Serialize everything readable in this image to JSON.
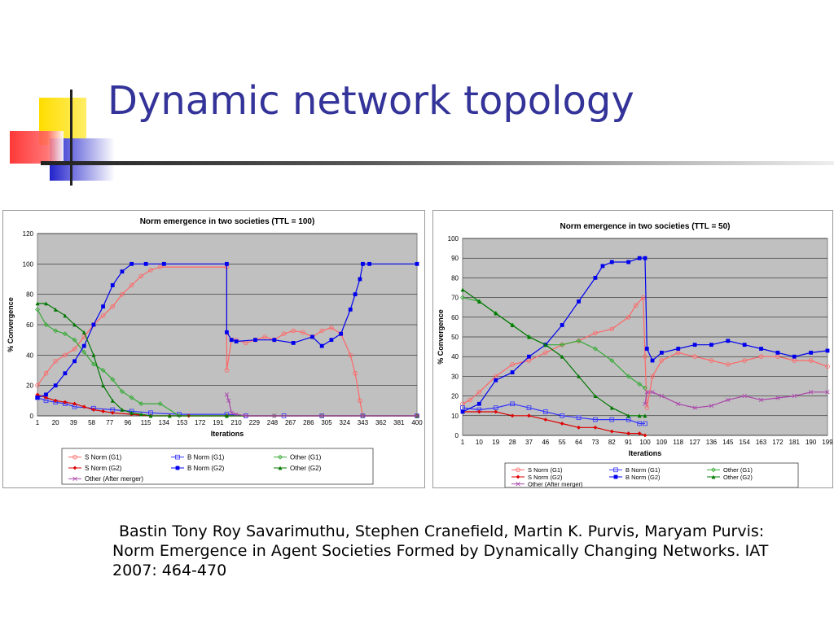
{
  "slide": {
    "title": "Dynamic network topology",
    "citation": {
      "line1": "Bastin Tony Roy Savarimuthu, Stephen Cranefield, Martin K. Purvis, Maryam Purvis:",
      "line2": "Norm Emergence in Agent Societies Formed by Dynamically Changing Networks. IAT",
      "line3": "2007: 464-470"
    },
    "colors": {
      "title": "#333399",
      "deco_yellow": "#ffcc00",
      "deco_blue": "#3333cc",
      "deco_red": "#ff3333"
    }
  },
  "chart_data": [
    {
      "type": "line",
      "title": "Norm emergence in two societies (TTL = 100)",
      "xlabel": "Iterations",
      "ylabel": "% Convergence",
      "xlim": [
        1,
        400
      ],
      "ylim": [
        0,
        120
      ],
      "yticks": [
        0,
        20,
        40,
        60,
        80,
        100,
        120
      ],
      "xticks": [
        1,
        20,
        39,
        58,
        77,
        96,
        115,
        134,
        153,
        172,
        191,
        210,
        229,
        248,
        267,
        286,
        305,
        324,
        343,
        362,
        381,
        400
      ],
      "grid": true,
      "legend_position": "bottom",
      "series": [
        {
          "name": "S Norm (G1)",
          "color": "#ff6666",
          "marker": "circle-open",
          "x": [
            1,
            10,
            20,
            30,
            40,
            50,
            60,
            70,
            80,
            90,
            100,
            110,
            120,
            130,
            200,
            200,
            205,
            210,
            220,
            230,
            240,
            250,
            260,
            270,
            280,
            290,
            300,
            310,
            320,
            330,
            335,
            340,
            343
          ],
          "y": [
            20,
            28,
            36,
            40,
            44,
            52,
            60,
            66,
            72,
            80,
            86,
            92,
            96,
            98,
            98,
            30,
            50,
            50,
            48,
            50,
            52,
            50,
            54,
            56,
            55,
            52,
            56,
            58,
            54,
            40,
            28,
            10,
            0
          ]
        },
        {
          "name": "B Norm (G1)",
          "color": "#3333ff",
          "marker": "square-open",
          "x": [
            1,
            10,
            20,
            30,
            40,
            60,
            80,
            100,
            120,
            150,
            200,
            220,
            260,
            300,
            343,
            400
          ],
          "y": [
            12,
            10,
            9,
            8,
            6,
            5,
            4,
            3,
            2,
            1,
            1,
            0,
            0,
            0,
            0,
            0
          ]
        },
        {
          "name": "Other (G1)",
          "color": "#33aa33",
          "marker": "diamond-open",
          "x": [
            1,
            10,
            20,
            30,
            40,
            50,
            60,
            70,
            80,
            90,
            100,
            110,
            130,
            150,
            200,
            250,
            300,
            343,
            400
          ],
          "y": [
            70,
            60,
            56,
            54,
            50,
            42,
            34,
            30,
            24,
            16,
            12,
            8,
            8,
            0,
            0,
            0,
            0,
            0,
            0
          ]
        },
        {
          "name": "S Norm (G2)",
          "color": "#dd0000",
          "marker": "diamond",
          "x": [
            1,
            10,
            20,
            30,
            40,
            50,
            60,
            70,
            80,
            100,
            120,
            140,
            160,
            200,
            400
          ],
          "y": [
            14,
            12,
            10,
            9,
            8,
            6,
            4,
            3,
            2,
            1,
            0,
            0,
            0,
            0,
            0
          ]
        },
        {
          "name": "B Norm (G2)",
          "color": "#0000ee",
          "marker": "square",
          "x": [
            1,
            10,
            20,
            30,
            40,
            50,
            60,
            70,
            80,
            90,
            100,
            115,
            134,
            200,
            200,
            205,
            210,
            230,
            250,
            270,
            290,
            300,
            310,
            320,
            330,
            335,
            340,
            343,
            350,
            400
          ],
          "y": [
            12,
            14,
            20,
            28,
            36,
            46,
            60,
            72,
            86,
            95,
            100,
            100,
            100,
            100,
            55,
            50,
            49,
            50,
            50,
            48,
            52,
            46,
            50,
            54,
            70,
            80,
            90,
            100,
            100,
            100
          ]
        },
        {
          "name": "Other (G2)",
          "color": "#007700",
          "marker": "triangle",
          "x": [
            1,
            10,
            20,
            30,
            40,
            50,
            60,
            70,
            80,
            90,
            100,
            110,
            120,
            140,
            200,
            400
          ],
          "y": [
            74,
            74,
            70,
            66,
            60,
            55,
            40,
            20,
            10,
            4,
            2,
            1,
            0,
            0,
            0,
            0
          ]
        },
        {
          "name": "Other (After merger)",
          "color": "#aa44aa",
          "marker": "x",
          "x": [
            200,
            202,
            205,
            210,
            220,
            250,
            300,
            343,
            400
          ],
          "y": [
            14,
            10,
            2,
            1,
            0,
            0,
            0,
            0,
            0
          ]
        }
      ]
    },
    {
      "type": "line",
      "title": "Norm emergence in two societies (TTL = 50)",
      "xlabel": "Iterations",
      "ylabel": "% Convergence",
      "xlim": [
        1,
        199
      ],
      "ylim": [
        0,
        100
      ],
      "yticks": [
        0,
        10,
        20,
        30,
        40,
        50,
        60,
        70,
        80,
        90,
        100
      ],
      "xticks": [
        1,
        10,
        19,
        28,
        37,
        46,
        55,
        64,
        73,
        82,
        91,
        100,
        109,
        118,
        127,
        136,
        145,
        154,
        163,
        172,
        181,
        190,
        199
      ],
      "grid": true,
      "legend_position": "bottom",
      "series": [
        {
          "name": "S Norm (G1)",
          "color": "#ff6666",
          "marker": "circle-open",
          "x": [
            1,
            5,
            10,
            19,
            28,
            37,
            46,
            55,
            64,
            73,
            82,
            91,
            95,
            99,
            100,
            101,
            104,
            109,
            118,
            127,
            136,
            145,
            154,
            163,
            172,
            181,
            190,
            199
          ],
          "y": [
            16,
            18,
            22,
            30,
            36,
            38,
            42,
            46,
            48,
            52,
            54,
            60,
            66,
            70,
            40,
            14,
            30,
            38,
            42,
            40,
            38,
            36,
            38,
            40,
            40,
            38,
            38,
            35
          ]
        },
        {
          "name": "B Norm (G1)",
          "color": "#3333ff",
          "marker": "square-open",
          "x": [
            1,
            10,
            19,
            28,
            37,
            46,
            55,
            64,
            73,
            82,
            91,
            97,
            100
          ],
          "y": [
            14,
            13,
            14,
            16,
            14,
            12,
            10,
            9,
            8,
            8,
            8,
            6,
            6
          ]
        },
        {
          "name": "Other (G1)",
          "color": "#33aa33",
          "marker": "diamond-open",
          "x": [
            1,
            10,
            19,
            28,
            37,
            46,
            55,
            64,
            73,
            82,
            91,
            97,
            100
          ],
          "y": [
            70,
            68,
            62,
            56,
            50,
            46,
            46,
            48,
            44,
            38,
            30,
            26,
            24
          ]
        },
        {
          "name": "S Norm (G2)",
          "color": "#dd0000",
          "marker": "diamond",
          "x": [
            1,
            10,
            19,
            28,
            37,
            46,
            55,
            64,
            73,
            82,
            91,
            97,
            100
          ],
          "y": [
            12,
            12,
            12,
            10,
            10,
            8,
            6,
            4,
            4,
            2,
            1,
            1,
            0
          ]
        },
        {
          "name": "B Norm (G2)",
          "color": "#0000ee",
          "marker": "square",
          "x": [
            1,
            10,
            19,
            28,
            37,
            46,
            55,
            64,
            73,
            77,
            82,
            91,
            97,
            100,
            101,
            104,
            109,
            118,
            127,
            136,
            145,
            154,
            163,
            172,
            181,
            190,
            199
          ],
          "y": [
            12,
            16,
            28,
            32,
            40,
            46,
            56,
            68,
            80,
            86,
            88,
            88,
            90,
            90,
            44,
            38,
            42,
            44,
            46,
            46,
            48,
            46,
            44,
            42,
            40,
            42,
            43
          ]
        },
        {
          "name": "Other (G2)",
          "color": "#007700",
          "marker": "triangle",
          "x": [
            1,
            10,
            19,
            28,
            37,
            46,
            55,
            64,
            73,
            82,
            91,
            97,
            100
          ],
          "y": [
            74,
            68,
            62,
            56,
            50,
            46,
            40,
            30,
            20,
            14,
            10,
            10,
            10
          ]
        },
        {
          "name": "Other (After merger)",
          "color": "#aa44aa",
          "marker": "x",
          "x": [
            100,
            101,
            104,
            109,
            118,
            127,
            136,
            145,
            154,
            163,
            172,
            181,
            190,
            199
          ],
          "y": [
            16,
            22,
            22,
            20,
            16,
            14,
            15,
            18,
            20,
            18,
            19,
            20,
            22,
            22
          ]
        }
      ]
    }
  ]
}
